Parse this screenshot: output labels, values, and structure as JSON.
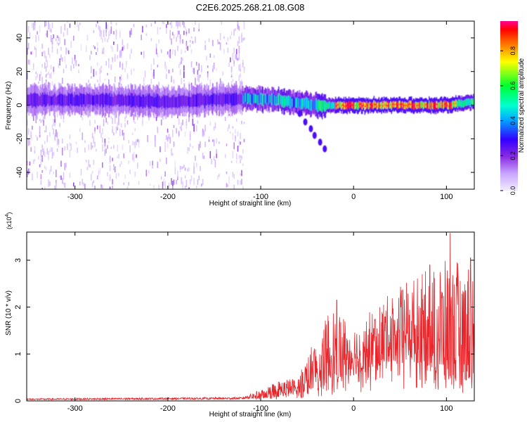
{
  "title": "C2E6.2025.268.21.08.G08",
  "chart_data": [
    {
      "type": "heatmap",
      "xlabel": "Height of straight line (km)",
      "ylabel": "Frequency (Hz)",
      "xlim": [
        -352,
        130
      ],
      "ylim": [
        -50,
        50
      ],
      "xticks": [
        -300,
        -200,
        -100,
        0,
        100
      ],
      "yticks": [
        -40,
        -20,
        0,
        20,
        40
      ],
      "colorbar": {
        "label": "Normalized spectral amplitude",
        "range": [
          0,
          0.97
        ],
        "ticks": [
          0.0,
          0.2,
          0.4,
          0.6,
          0.8
        ],
        "tick_labels": [
          "0.0",
          "0.2",
          "0.4",
          "0.6",
          "0.8"
        ],
        "colormap": [
          "#f2ecff",
          "#c9a6ff",
          "#8a2be2",
          "#3300ff",
          "#00e0ff",
          "#00ff40",
          "#ffff00",
          "#ff8000",
          "#ff0000",
          "#ff0080"
        ]
      },
      "features": {
        "noise_region_x": [
          -352,
          -118
        ],
        "signal_band_center_hz": [
          {
            "x": -352,
            "y": 3
          },
          {
            "x": -260,
            "y": 3
          },
          {
            "x": -200,
            "y": 2
          },
          {
            "x": -120,
            "y": 4
          },
          {
            "x": -80,
            "y": 3
          },
          {
            "x": -40,
            "y": 0
          },
          {
            "x": 0,
            "y": 0
          },
          {
            "x": 60,
            "y": 0
          },
          {
            "x": 100,
            "y": 0
          },
          {
            "x": 130,
            "y": 2
          }
        ],
        "strongest_x_range": [
          -20,
          110
        ],
        "tail_points": [
          {
            "x": -58,
            "y": -5
          },
          {
            "x": -52,
            "y": -10
          },
          {
            "x": -46,
            "y": -14
          },
          {
            "x": -42,
            "y": -18
          },
          {
            "x": -36,
            "y": -22
          },
          {
            "x": -31,
            "y": -26
          }
        ]
      }
    },
    {
      "type": "line",
      "xlabel": "Height of straight line (km)",
      "ylabel": "SNR (10 * v/v)",
      "scale_label": "(x10",
      "scale_exp": "4",
      "scale_suffix": ")",
      "xlim": [
        -352,
        130
      ],
      "ylim": [
        0,
        3.6
      ],
      "xticks": [
        -300,
        -200,
        -100,
        0,
        100
      ],
      "yticks": [
        0,
        1,
        2,
        3
      ],
      "color": "#e8252a",
      "envelope": [
        {
          "x": -352,
          "base": 0.02,
          "peak": 0.05
        },
        {
          "x": -120,
          "base": 0.03,
          "peak": 0.08
        },
        {
          "x": -100,
          "base": 0.06,
          "peak": 0.25
        },
        {
          "x": -80,
          "base": 0.1,
          "peak": 0.45
        },
        {
          "x": -60,
          "base": 0.15,
          "peak": 0.5
        },
        {
          "x": -40,
          "base": 0.3,
          "peak": 1.4
        },
        {
          "x": -20,
          "base": 0.45,
          "peak": 2.1
        },
        {
          "x": 0,
          "base": 0.55,
          "peak": 1.7
        },
        {
          "x": 20,
          "base": 0.7,
          "peak": 2.0
        },
        {
          "x": 40,
          "base": 0.85,
          "peak": 2.3
        },
        {
          "x": 60,
          "base": 0.85,
          "peak": 2.6
        },
        {
          "x": 80,
          "base": 0.75,
          "peak": 2.8
        },
        {
          "x": 100,
          "base": 0.5,
          "peak": 3.0
        },
        {
          "x": 130,
          "base": 0.4,
          "peak": 3.0
        }
      ],
      "spikes": [
        {
          "x": -18,
          "y": 2.15
        },
        {
          "x": 82,
          "y": 2.9
        },
        {
          "x": 104,
          "y": 3.58
        },
        {
          "x": 126,
          "y": 3.05
        }
      ]
    }
  ]
}
